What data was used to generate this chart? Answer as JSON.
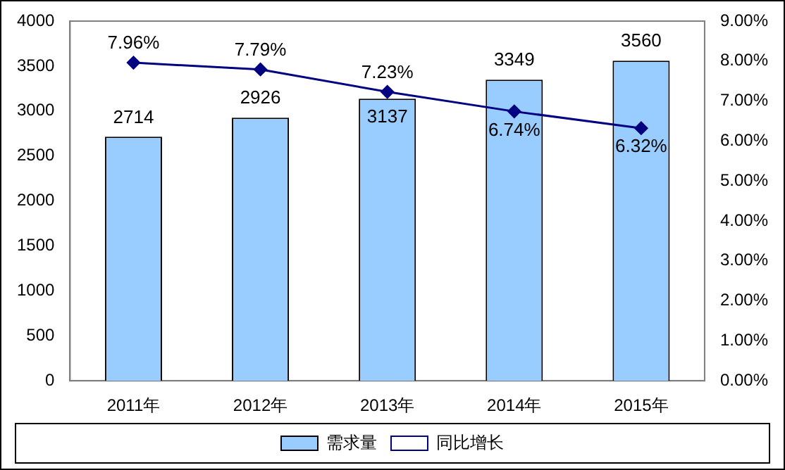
{
  "chart_data": {
    "type": "bar",
    "categories": [
      "2011年",
      "2012年",
      "2013年",
      "2014年",
      "2015年"
    ],
    "series": [
      {
        "name": "需求量",
        "color": "#99ccff",
        "values": [
          2714,
          2926,
          3137,
          3349,
          3560
        ],
        "value_labels": [
          "2714",
          "2926",
          "3137",
          "3349",
          "3560"
        ]
      },
      {
        "name": "同比增长",
        "type": "line",
        "axis": "y2",
        "color": "#000080",
        "values": [
          7.96,
          7.79,
          7.23,
          6.74,
          6.32
        ],
        "value_labels": [
          "7.96%",
          "7.79%",
          "7.23%",
          "6.74%",
          "6.32%"
        ]
      }
    ],
    "ylim": [
      0,
      4000
    ],
    "yticks": [
      0,
      500,
      1000,
      1500,
      2000,
      2500,
      3000,
      3500,
      4000
    ],
    "y2lim": [
      0,
      9
    ],
    "y2ticks": [
      {
        "value": 0,
        "label": "0.00%"
      },
      {
        "value": 1,
        "label": "1.00%"
      },
      {
        "value": 2,
        "label": "2.00%"
      },
      {
        "value": 3,
        "label": "3.00%"
      },
      {
        "value": 4,
        "label": "4.00%"
      },
      {
        "value": 5,
        "label": "5.00%"
      },
      {
        "value": 6,
        "label": "6.00%"
      },
      {
        "value": 7,
        "label": "7.00%"
      },
      {
        "value": 8,
        "label": "8.00%"
      },
      {
        "value": 9,
        "label": "9.00%"
      }
    ],
    "grid": false,
    "legend": "bottom",
    "marker": "diamond",
    "line_style": "solid"
  }
}
